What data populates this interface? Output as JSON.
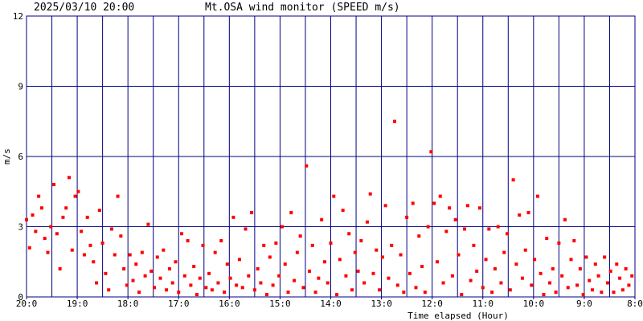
{
  "chart_data": {
    "type": "scatter",
    "date_label": "2025/03/10 20:00",
    "title": "Mt.OSA wind monitor (SPEED m/s)",
    "ylabel": "m/s",
    "xlabel": "Time elapsed (Hour)",
    "color": "#ff0000",
    "grid_color": "#000080",
    "xlim": [
      0,
      12
    ],
    "ylim": [
      0,
      12
    ],
    "yticks": [
      0,
      3,
      6,
      9,
      12
    ],
    "xticks": [
      {
        "value": 0,
        "label": "20:0"
      },
      {
        "value": 1,
        "label": "19:0"
      },
      {
        "value": 2,
        "label": "18:0"
      },
      {
        "value": 3,
        "label": "17:0"
      },
      {
        "value": 4,
        "label": "16:0"
      },
      {
        "value": 5,
        "label": "15:0"
      },
      {
        "value": 6,
        "label": "14:0"
      },
      {
        "value": 7,
        "label": "13:0"
      },
      {
        "value": 8,
        "label": "12:0"
      },
      {
        "value": 9,
        "label": "11:0"
      },
      {
        "value": 10,
        "label": "10:0"
      },
      {
        "value": 11,
        "label": "9:0"
      },
      {
        "value": 12,
        "label": "8:0"
      }
    ],
    "x_minor_ticks": [
      0.5,
      1.5,
      2.5,
      3.5,
      4.5,
      5.5,
      6.5,
      7.5,
      8.5,
      9.5,
      10.5,
      11.5
    ],
    "x": [
      0,
      0.06,
      0.12,
      0.18,
      0.24,
      0.3,
      0.36,
      0.42,
      0.48,
      0.54,
      0.6,
      0.66,
      0.72,
      0.78,
      0.84,
      0.9,
      0.96,
      1.02,
      1.08,
      1.14,
      1.2,
      1.26,
      1.32,
      1.38,
      1.44,
      1.5,
      1.56,
      1.62,
      1.68,
      1.74,
      1.8,
      1.86,
      1.92,
      1.98,
      2.04,
      2.1,
      2.16,
      2.22,
      2.28,
      2.34,
      2.4,
      2.46,
      2.52,
      2.58,
      2.64,
      2.7,
      2.76,
      2.82,
      2.88,
      2.94,
      3,
      3.06,
      3.12,
      3.18,
      3.24,
      3.3,
      3.36,
      3.42,
      3.48,
      3.54,
      3.6,
      3.66,
      3.72,
      3.78,
      3.84,
      3.9,
      3.96,
      4.02,
      4.08,
      4.14,
      4.2,
      4.26,
      4.32,
      4.38,
      4.44,
      4.5,
      4.56,
      4.62,
      4.68,
      4.74,
      4.8,
      4.86,
      4.92,
      4.98,
      5.04,
      5.1,
      5.16,
      5.22,
      5.28,
      5.34,
      5.4,
      5.46,
      5.52,
      5.58,
      5.64,
      5.7,
      5.76,
      5.82,
      5.88,
      5.94,
      6,
      6.06,
      6.12,
      6.18,
      6.24,
      6.3,
      6.36,
      6.42,
      6.48,
      6.54,
      6.6,
      6.66,
      6.72,
      6.78,
      6.84,
      6.9,
      6.96,
      7.02,
      7.08,
      7.14,
      7.2,
      7.26,
      7.32,
      7.38,
      7.44,
      7.5,
      7.56,
      7.62,
      7.68,
      7.74,
      7.8,
      7.86,
      7.92,
      7.98,
      8.04,
      8.1,
      8.16,
      8.22,
      8.28,
      8.34,
      8.4,
      8.46,
      8.52,
      8.58,
      8.64,
      8.7,
      8.76,
      8.82,
      8.88,
      8.94,
      9,
      9.06,
      9.12,
      9.18,
      9.24,
      9.3,
      9.36,
      9.42,
      9.48,
      9.54,
      9.6,
      9.66,
      9.72,
      9.78,
      9.84,
      9.9,
      9.96,
      10.02,
      10.08,
      10.14,
      10.2,
      10.26,
      10.32,
      10.38,
      10.44,
      10.5,
      10.56,
      10.62,
      10.68,
      10.74,
      10.8,
      10.86,
      10.92,
      10.98,
      11.04,
      11.1,
      11.16,
      11.22,
      11.28,
      11.34,
      11.4,
      11.46,
      11.52,
      11.58,
      11.64,
      11.7,
      11.76,
      11.82,
      11.88,
      11.94
    ],
    "values": [
      3.3,
      2.1,
      3.5,
      2.8,
      4.3,
      3.8,
      2.5,
      1.9,
      3.0,
      4.8,
      2.7,
      1.2,
      3.4,
      3.8,
      5.1,
      2.0,
      4.3,
      4.5,
      2.8,
      1.8,
      3.4,
      2.2,
      1.5,
      0.6,
      3.7,
      2.3,
      1.0,
      0.3,
      2.9,
      1.8,
      4.3,
      2.6,
      1.2,
      0.5,
      1.8,
      0.7,
      1.4,
      0.2,
      1.9,
      0.9,
      3.1,
      1.1,
      0.4,
      1.7,
      0.8,
      2.0,
      0.3,
      1.2,
      0.6,
      1.5,
      0.2,
      2.7,
      0.9,
      2.4,
      0.5,
      1.3,
      0.1,
      0.8,
      2.2,
      0.4,
      1.0,
      0.3,
      1.9,
      0.6,
      2.4,
      0.2,
      1.4,
      0.8,
      3.4,
      0.5,
      1.6,
      0.4,
      2.9,
      0.9,
      3.6,
      0.3,
      1.2,
      0.6,
      2.2,
      0.1,
      1.7,
      0.5,
      2.3,
      0.9,
      3.0,
      1.4,
      0.2,
      3.6,
      0.7,
      1.9,
      2.6,
      0.4,
      5.6,
      1.1,
      2.2,
      0.2,
      0.8,
      3.3,
      1.5,
      0.6,
      2.3,
      4.3,
      0.1,
      1.6,
      3.7,
      0.9,
      2.7,
      0.3,
      1.9,
      1.1,
      2.4,
      0.6,
      3.2,
      4.4,
      1.0,
      2.0,
      0.3,
      1.7,
      3.9,
      0.8,
      2.2,
      7.5,
      0.5,
      1.8,
      0.2,
      3.4,
      1.0,
      4.0,
      0.4,
      2.6,
      1.3,
      0.2,
      3.0,
      6.2,
      4.0,
      1.5,
      4.3,
      0.6,
      2.8,
      3.8,
      0.9,
      3.3,
      1.8,
      0.1,
      2.9,
      3.9,
      0.7,
      2.2,
      1.1,
      3.8,
      0.4,
      1.6,
      2.9,
      0.2,
      1.2,
      3.0,
      0.6,
      1.9,
      2.7,
      0.3,
      5.0,
      1.4,
      3.5,
      0.8,
      2.0,
      3.6,
      0.5,
      1.6,
      4.3,
      1.0,
      0.1,
      2.5,
      0.6,
      1.2,
      0.2,
      2.3,
      0.9,
      3.3,
      0.4,
      1.6,
      2.4,
      0.5,
      1.2,
      0.1,
      1.7,
      0.7,
      0.3,
      1.4,
      0.9,
      0.2,
      1.7,
      0.6,
      1.1,
      0.2,
      1.4,
      0.8,
      0.3,
      1.2,
      0.5,
      0.9
    ]
  }
}
